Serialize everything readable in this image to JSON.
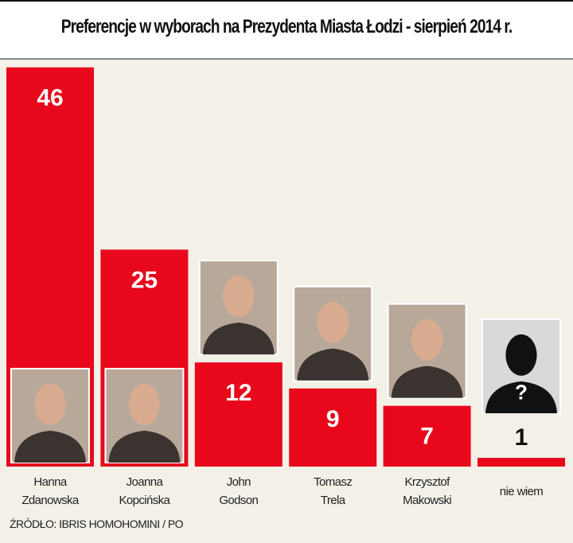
{
  "chart_data": {
    "type": "bar",
    "title": "Preferencje w wyborach na Prezydenta Miasta Łodzi - sierpień 2014 r.",
    "categories": [
      "Hanna Zdanowska",
      "Joanna Kopcińska",
      "John Godson",
      "Tomasz Trela",
      "Krzysztof Makowski",
      "nie wiem"
    ],
    "category_lines": [
      [
        "Hanna",
        "Zdanowska"
      ],
      [
        "Joanna",
        "Kopcińska"
      ],
      [
        "John",
        "Godson"
      ],
      [
        "Tomasz",
        "Trela"
      ],
      [
        "Krzysztof",
        "Makowski"
      ],
      [
        "nie wiem"
      ]
    ],
    "values": [
      46,
      25,
      12,
      9,
      7,
      1
    ],
    "value_labels": [
      "46",
      "25",
      "12",
      "9",
      "7",
      "1"
    ],
    "bar_color": "#e8071b",
    "source": "ŹRÓDŁO: IBRIS HOMOHOMINI / PO"
  }
}
